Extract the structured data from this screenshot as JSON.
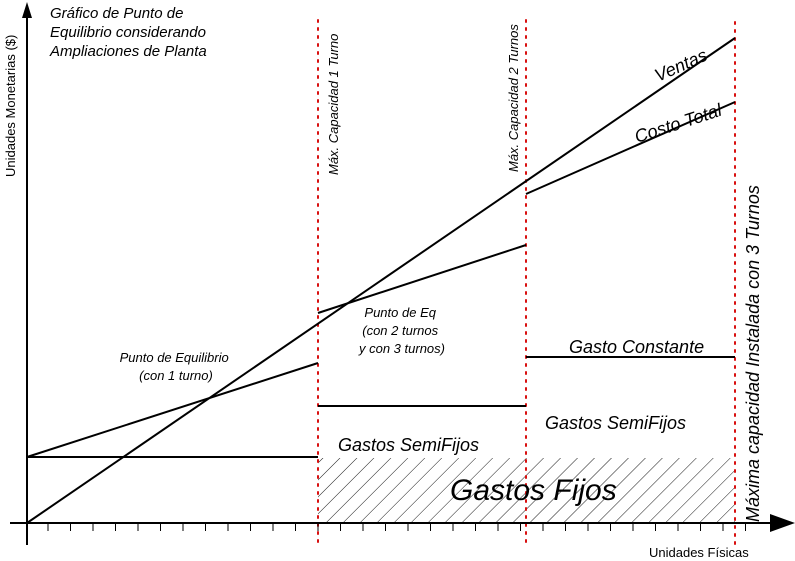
{
  "title": [
    "Gráfico de Punto de",
    "Equilibrio considerando",
    "Ampliaciones de Planta"
  ],
  "y_axis_label": "Unidades Monetarias ($)",
  "x_axis_label": "Unidades Físicas",
  "capacity_markers": {
    "shift1": "Máx. Capacidad 1 Turno",
    "shift2": "Máx. Capacidad 2 Turnos",
    "shift3": "Máxima capacidad Instalada con 3 Turnos"
  },
  "line_labels": {
    "sales": "Ventas",
    "total_cost": "Costo Total"
  },
  "region_labels": {
    "fixed_costs": "Gastos Fijos",
    "semifixed_1": "Gastos SemiFijos",
    "semifixed_2": "Gastos SemiFijos",
    "constant_cost": "Gasto Constante"
  },
  "break_even_1": [
    "Punto de Equilibrio",
    "(con 1 turno)"
  ],
  "break_even_2": [
    "Punto de Eq",
    "(con 2 turnos",
    "y con 3 turnos)"
  ],
  "colors": {
    "lines": "#000000",
    "capacity_markers": "#d81010",
    "background": "#ffffff"
  }
}
